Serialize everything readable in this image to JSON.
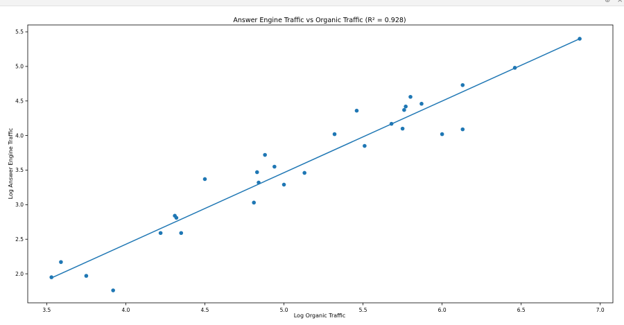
{
  "window": {
    "controls": [
      "⊕",
      "×"
    ]
  },
  "chart_data": {
    "type": "scatter",
    "title": "Answer Engine Traffic vs Organic Traffic (R² = 0.928)",
    "xlabel": "Log Organic Traffic",
    "ylabel": "Log Answer Engine Traffic",
    "xlim": [
      3.38,
      7.08
    ],
    "ylim": [
      1.58,
      5.6
    ],
    "xticks": [
      "3.5",
      "4.0",
      "4.5",
      "5.0",
      "5.5",
      "6.0",
      "6.5",
      "7.0"
    ],
    "yticks": [
      "2.0",
      "2.5",
      "3.0",
      "3.5",
      "4.0",
      "4.5",
      "5.0",
      "5.5"
    ],
    "grid": false,
    "colors": {
      "points": "#1f77b4",
      "fit_line": "#1f77b4"
    },
    "points": [
      {
        "x": 3.53,
        "y": 1.95
      },
      {
        "x": 3.59,
        "y": 2.17
      },
      {
        "x": 3.75,
        "y": 1.97
      },
      {
        "x": 3.92,
        "y": 1.76
      },
      {
        "x": 4.22,
        "y": 2.59
      },
      {
        "x": 4.31,
        "y": 2.84
      },
      {
        "x": 4.32,
        "y": 2.81
      },
      {
        "x": 4.35,
        "y": 2.59
      },
      {
        "x": 4.5,
        "y": 3.37
      },
      {
        "x": 4.81,
        "y": 3.03
      },
      {
        "x": 4.83,
        "y": 3.47
      },
      {
        "x": 4.84,
        "y": 3.32
      },
      {
        "x": 4.88,
        "y": 3.72
      },
      {
        "x": 4.94,
        "y": 3.55
      },
      {
        "x": 5.0,
        "y": 3.29
      },
      {
        "x": 5.13,
        "y": 3.46
      },
      {
        "x": 5.32,
        "y": 4.02
      },
      {
        "x": 5.46,
        "y": 4.36
      },
      {
        "x": 5.51,
        "y": 3.85
      },
      {
        "x": 5.68,
        "y": 4.17
      },
      {
        "x": 5.75,
        "y": 4.1
      },
      {
        "x": 5.76,
        "y": 4.37
      },
      {
        "x": 5.77,
        "y": 4.42
      },
      {
        "x": 5.8,
        "y": 4.56
      },
      {
        "x": 5.87,
        "y": 4.46
      },
      {
        "x": 6.0,
        "y": 4.02
      },
      {
        "x": 6.13,
        "y": 4.09
      },
      {
        "x": 6.13,
        "y": 4.73
      },
      {
        "x": 6.46,
        "y": 4.98
      },
      {
        "x": 6.87,
        "y": 5.4
      }
    ],
    "fit_line": {
      "x": [
        3.53,
        6.87
      ],
      "y": [
        1.94,
        5.4
      ]
    }
  }
}
